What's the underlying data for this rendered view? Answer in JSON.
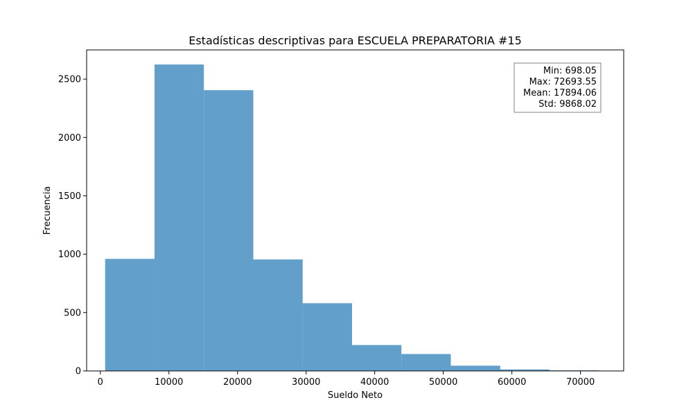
{
  "chart_data": {
    "type": "histogram",
    "title": "Estadísticas descriptivas para ESCUELA PREPARATORIA #15",
    "xlabel": "Sueldo Neto",
    "ylabel": "Frecuencia",
    "xlim": [
      -2000,
      76300
    ],
    "ylim": [
      0,
      2750
    ],
    "xticks": [
      0,
      10000,
      20000,
      30000,
      40000,
      50000,
      60000,
      70000
    ],
    "yticks": [
      0,
      500,
      1000,
      1500,
      2000,
      2500
    ],
    "bar_color": "#629fca",
    "bins": [
      {
        "x0": 698.05,
        "x1": 7897.6,
        "count": 960
      },
      {
        "x0": 7897.6,
        "x1": 15097.15,
        "count": 2625
      },
      {
        "x0": 15097.15,
        "x1": 22296.7,
        "count": 2405
      },
      {
        "x0": 22296.7,
        "x1": 29496.25,
        "count": 955
      },
      {
        "x0": 29496.25,
        "x1": 36695.8,
        "count": 580
      },
      {
        "x0": 36695.8,
        "x1": 43895.35,
        "count": 222
      },
      {
        "x0": 43895.35,
        "x1": 51094.9,
        "count": 145
      },
      {
        "x0": 51094.9,
        "x1": 58294.45,
        "count": 45
      },
      {
        "x0": 58294.45,
        "x1": 65494.0,
        "count": 13
      },
      {
        "x0": 65494.0,
        "x1": 72693.55,
        "count": 5
      }
    ],
    "stats": {
      "min": "Min: 698.05",
      "max": "Max: 72693.55",
      "mean": "Mean: 17894.06",
      "std": "Std: 9868.02"
    },
    "stats_box_placement": "top-right",
    "grid": false
  }
}
